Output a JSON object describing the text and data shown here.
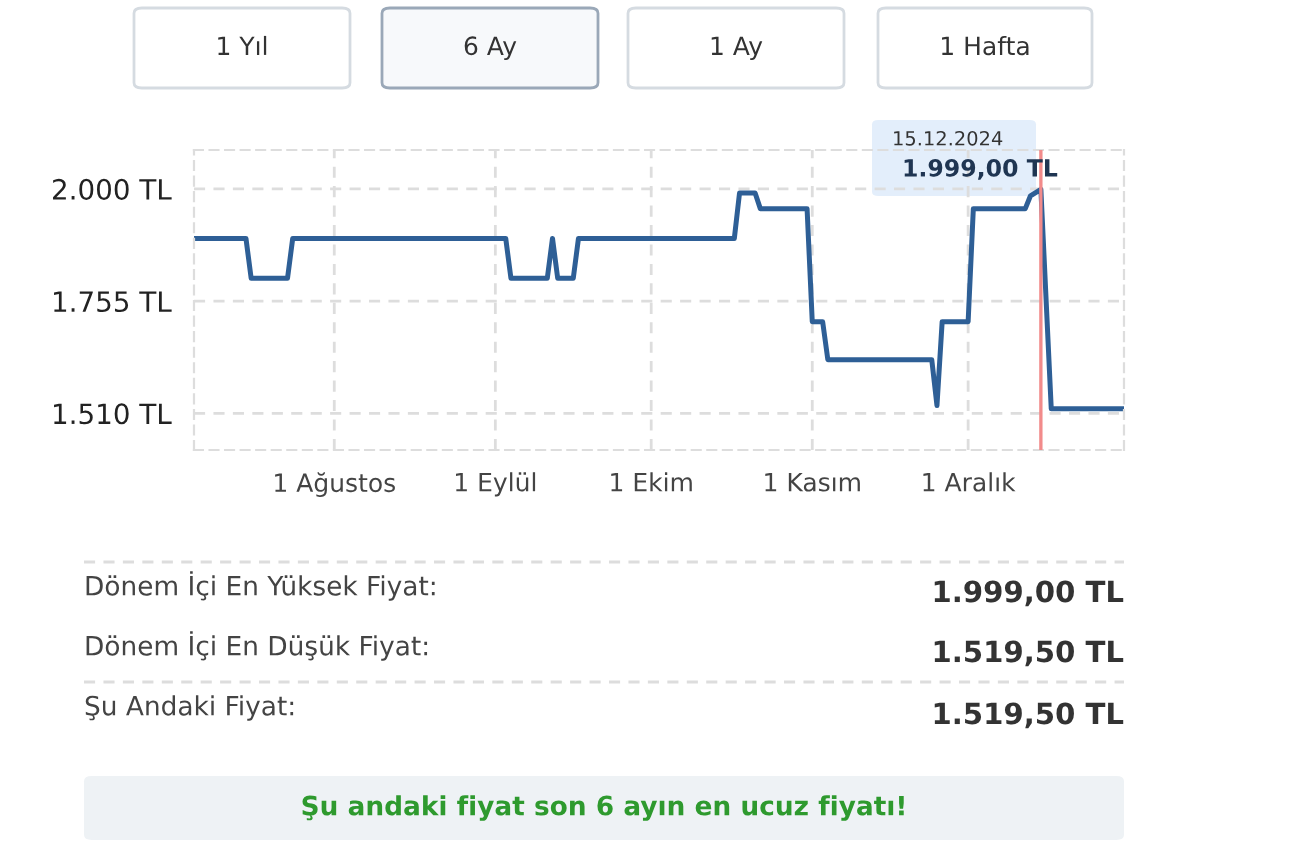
{
  "chart_data": {
    "type": "line",
    "color": "#2e5f96",
    "line_style": "solid",
    "marker": "none",
    "grid": true,
    "legend": false,
    "x": [
      "2024-07-05",
      "2024-07-15",
      "2024-07-16",
      "2024-07-23",
      "2024-07-24",
      "2024-09-03",
      "2024-09-04",
      "2024-09-11",
      "2024-09-12",
      "2024-09-13",
      "2024-09-16",
      "2024-09-17",
      "2024-10-17",
      "2024-10-18",
      "2024-10-21",
      "2024-10-22",
      "2024-10-31",
      "2024-11-01",
      "2024-11-03",
      "2024-11-04",
      "2024-11-24",
      "2024-11-25",
      "2024-11-26",
      "2024-12-01",
      "2024-12-02",
      "2024-12-12",
      "2024-12-13",
      "2024-12-15",
      "2024-12-17",
      "2024-12-31"
    ],
    "values": [
      1892,
      1892,
      1805,
      1805,
      1892,
      1892,
      1805,
      1805,
      1892,
      1805,
      1805,
      1892,
      1892,
      1991,
      1991,
      1957,
      1957,
      1710,
      1710,
      1627,
      1627,
      1527,
      1710,
      1710,
      1957,
      1957,
      1985,
      1999,
      1520,
      1520
    ],
    "xlim": [
      "2024-07-05",
      "2024-12-31"
    ],
    "xticks": [
      {
        "value": "2024-08-01",
        "label": "1 Ağustos"
      },
      {
        "value": "2024-09-01",
        "label": "1 Eylül"
      },
      {
        "value": "2024-10-01",
        "label": "1 Ekim"
      },
      {
        "value": "2024-11-01",
        "label": "1 Kasım"
      },
      {
        "value": "2024-12-01",
        "label": "1 Aralık"
      }
    ],
    "ylim": [
      1430,
      2085
    ],
    "yticks": [
      {
        "value": 1510,
        "label": "1.510 TL"
      },
      {
        "value": 1755,
        "label": "1.755 TL"
      },
      {
        "value": 2000,
        "label": "2.000 TL"
      }
    ],
    "ref_lines": [
      {
        "axis": "x",
        "value": "2024-12-15",
        "color": "#f28b8b"
      }
    ],
    "annotations": [
      "1 Yıl",
      "6 Ay",
      "1 Ay",
      "1 Hafta",
      "15.12.2024",
      {
        "text": "1.999,00 TL",
        "x": "2024-12-15",
        "y": 1999
      },
      "Dönem İçi En Yüksek Fiyat:",
      "1.999,00 TL",
      "Dönem İçi En Düşük Fiyat:",
      "1.519,50 TL",
      "Şu Andaki Fiyat:",
      "1.519,50 TL",
      "Şu andaki fiyat son 6 ayın en ucuz fiyatı!"
    ]
  }
}
